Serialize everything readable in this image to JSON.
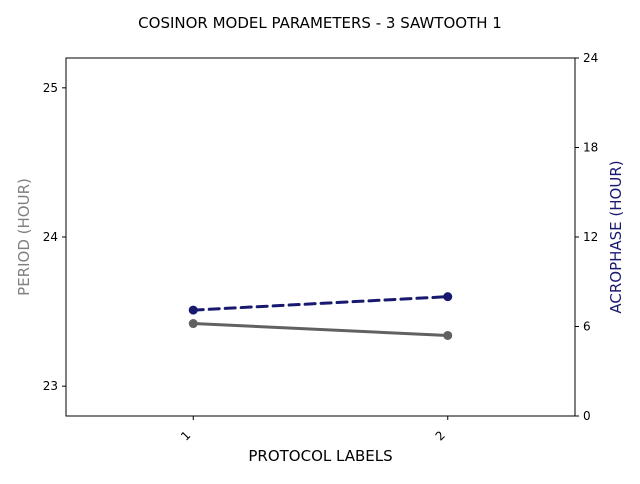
{
  "chart_data": {
    "type": "line",
    "title": "COSINOR MODEL PARAMETERS - 3 SAWTOOTH 1",
    "xlabel": "PROTOCOL LABELS",
    "categories": [
      "1",
      "2"
    ],
    "y_left": {
      "label": "PERIOD (HOUR)",
      "label_color": "#808080",
      "ylim": [
        22.8,
        25.2
      ],
      "ticks": [
        23,
        24,
        25
      ],
      "tick_labels": [
        "23",
        "24",
        "25"
      ]
    },
    "y_right": {
      "label": "ACROPHASE (HOUR)",
      "label_color": "#191970",
      "ylim": [
        0,
        24
      ],
      "ticks": [
        0,
        6,
        12,
        18,
        24
      ],
      "tick_labels": [
        "0",
        "6",
        "12",
        "18",
        "24"
      ]
    },
    "series": [
      {
        "axis": "left",
        "values": [
          23.42,
          23.34
        ],
        "color": "#616161",
        "line_style": "solid",
        "marker": "circle"
      },
      {
        "axis": "right",
        "values": [
          7.1,
          8.0
        ],
        "color": "#191970",
        "line_style": "dashed",
        "marker": "circle"
      }
    ],
    "grid": false,
    "legend": "none"
  }
}
